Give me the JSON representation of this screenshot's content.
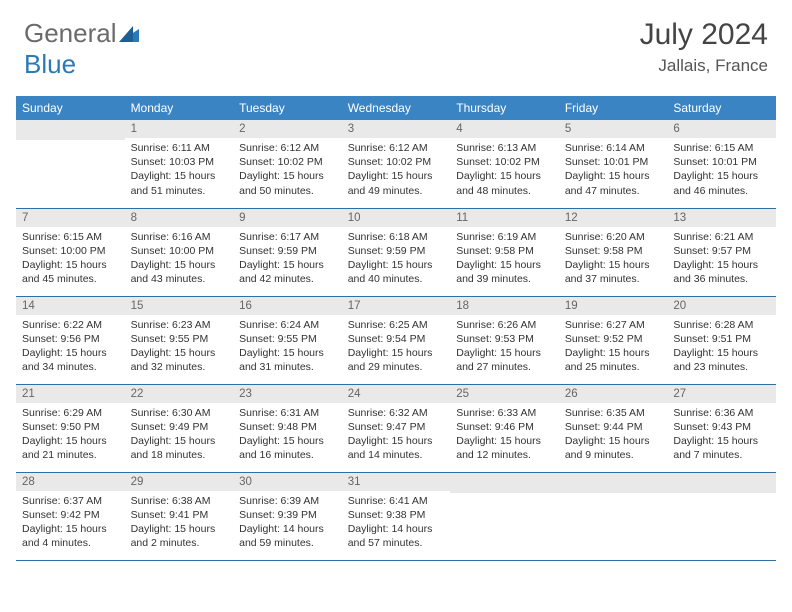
{
  "logo": {
    "general": "General",
    "blue": "Blue"
  },
  "title": "July 2024",
  "location": "Jallais, France",
  "headerColor": "#3b84c4",
  "gridLineColor": "#2f6fa3",
  "dayNumBg": "#e9e9e9",
  "weekdays": [
    "Sunday",
    "Monday",
    "Tuesday",
    "Wednesday",
    "Thursday",
    "Friday",
    "Saturday"
  ],
  "weeks": [
    [
      null,
      {
        "n": "1",
        "sr": "6:11 AM",
        "ss": "10:03 PM",
        "dl": "15 hours and 51 minutes."
      },
      {
        "n": "2",
        "sr": "6:12 AM",
        "ss": "10:02 PM",
        "dl": "15 hours and 50 minutes."
      },
      {
        "n": "3",
        "sr": "6:12 AM",
        "ss": "10:02 PM",
        "dl": "15 hours and 49 minutes."
      },
      {
        "n": "4",
        "sr": "6:13 AM",
        "ss": "10:02 PM",
        "dl": "15 hours and 48 minutes."
      },
      {
        "n": "5",
        "sr": "6:14 AM",
        "ss": "10:01 PM",
        "dl": "15 hours and 47 minutes."
      },
      {
        "n": "6",
        "sr": "6:15 AM",
        "ss": "10:01 PM",
        "dl": "15 hours and 46 minutes."
      }
    ],
    [
      {
        "n": "7",
        "sr": "6:15 AM",
        "ss": "10:00 PM",
        "dl": "15 hours and 45 minutes."
      },
      {
        "n": "8",
        "sr": "6:16 AM",
        "ss": "10:00 PM",
        "dl": "15 hours and 43 minutes."
      },
      {
        "n": "9",
        "sr": "6:17 AM",
        "ss": "9:59 PM",
        "dl": "15 hours and 42 minutes."
      },
      {
        "n": "10",
        "sr": "6:18 AM",
        "ss": "9:59 PM",
        "dl": "15 hours and 40 minutes."
      },
      {
        "n": "11",
        "sr": "6:19 AM",
        "ss": "9:58 PM",
        "dl": "15 hours and 39 minutes."
      },
      {
        "n": "12",
        "sr": "6:20 AM",
        "ss": "9:58 PM",
        "dl": "15 hours and 37 minutes."
      },
      {
        "n": "13",
        "sr": "6:21 AM",
        "ss": "9:57 PM",
        "dl": "15 hours and 36 minutes."
      }
    ],
    [
      {
        "n": "14",
        "sr": "6:22 AM",
        "ss": "9:56 PM",
        "dl": "15 hours and 34 minutes."
      },
      {
        "n": "15",
        "sr": "6:23 AM",
        "ss": "9:55 PM",
        "dl": "15 hours and 32 minutes."
      },
      {
        "n": "16",
        "sr": "6:24 AM",
        "ss": "9:55 PM",
        "dl": "15 hours and 31 minutes."
      },
      {
        "n": "17",
        "sr": "6:25 AM",
        "ss": "9:54 PM",
        "dl": "15 hours and 29 minutes."
      },
      {
        "n": "18",
        "sr": "6:26 AM",
        "ss": "9:53 PM",
        "dl": "15 hours and 27 minutes."
      },
      {
        "n": "19",
        "sr": "6:27 AM",
        "ss": "9:52 PM",
        "dl": "15 hours and 25 minutes."
      },
      {
        "n": "20",
        "sr": "6:28 AM",
        "ss": "9:51 PM",
        "dl": "15 hours and 23 minutes."
      }
    ],
    [
      {
        "n": "21",
        "sr": "6:29 AM",
        "ss": "9:50 PM",
        "dl": "15 hours and 21 minutes."
      },
      {
        "n": "22",
        "sr": "6:30 AM",
        "ss": "9:49 PM",
        "dl": "15 hours and 18 minutes."
      },
      {
        "n": "23",
        "sr": "6:31 AM",
        "ss": "9:48 PM",
        "dl": "15 hours and 16 minutes."
      },
      {
        "n": "24",
        "sr": "6:32 AM",
        "ss": "9:47 PM",
        "dl": "15 hours and 14 minutes."
      },
      {
        "n": "25",
        "sr": "6:33 AM",
        "ss": "9:46 PM",
        "dl": "15 hours and 12 minutes."
      },
      {
        "n": "26",
        "sr": "6:35 AM",
        "ss": "9:44 PM",
        "dl": "15 hours and 9 minutes."
      },
      {
        "n": "27",
        "sr": "6:36 AM",
        "ss": "9:43 PM",
        "dl": "15 hours and 7 minutes."
      }
    ],
    [
      {
        "n": "28",
        "sr": "6:37 AM",
        "ss": "9:42 PM",
        "dl": "15 hours and 4 minutes."
      },
      {
        "n": "29",
        "sr": "6:38 AM",
        "ss": "9:41 PM",
        "dl": "15 hours and 2 minutes."
      },
      {
        "n": "30",
        "sr": "6:39 AM",
        "ss": "9:39 PM",
        "dl": "14 hours and 59 minutes."
      },
      {
        "n": "31",
        "sr": "6:41 AM",
        "ss": "9:38 PM",
        "dl": "14 hours and 57 minutes."
      },
      null,
      null,
      null
    ]
  ],
  "labels": {
    "sunrise": "Sunrise:",
    "sunset": "Sunset:",
    "daylight": "Daylight:"
  }
}
